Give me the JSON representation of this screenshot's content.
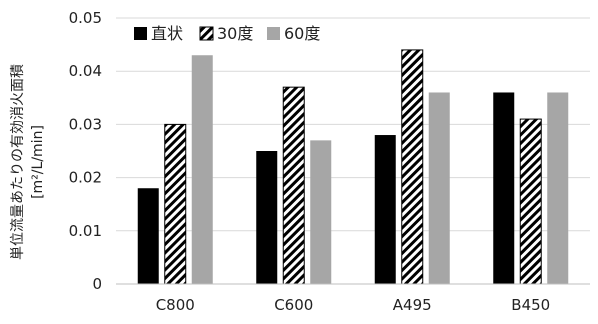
{
  "chart_data": {
    "type": "bar",
    "categories": [
      "C800",
      "C600",
      "A495",
      "B450"
    ],
    "series": [
      {
        "name": "直状",
        "values": [
          0.018,
          0.025,
          0.028,
          0.036
        ],
        "color": "#000000",
        "fill": "solid"
      },
      {
        "name": "30度",
        "values": [
          0.03,
          0.037,
          0.044,
          0.031
        ],
        "color": "#000000",
        "fill": "diagonal-hatch"
      },
      {
        "name": "60度",
        "values": [
          0.043,
          0.027,
          0.036,
          0.036
        ],
        "color": "#a6a6a6",
        "fill": "solid"
      }
    ],
    "title": "",
    "xlabel": "",
    "ylabel_line1": "単位流量あたりの有効消火面積",
    "ylabel_line2": "[m²/L/min]",
    "ylim": [
      0,
      0.05
    ],
    "yticks": [
      "0",
      "0.01",
      "0.02",
      "0.03",
      "0.04",
      "0.05"
    ],
    "grid": "horizontal",
    "legend_position": "top-left"
  }
}
